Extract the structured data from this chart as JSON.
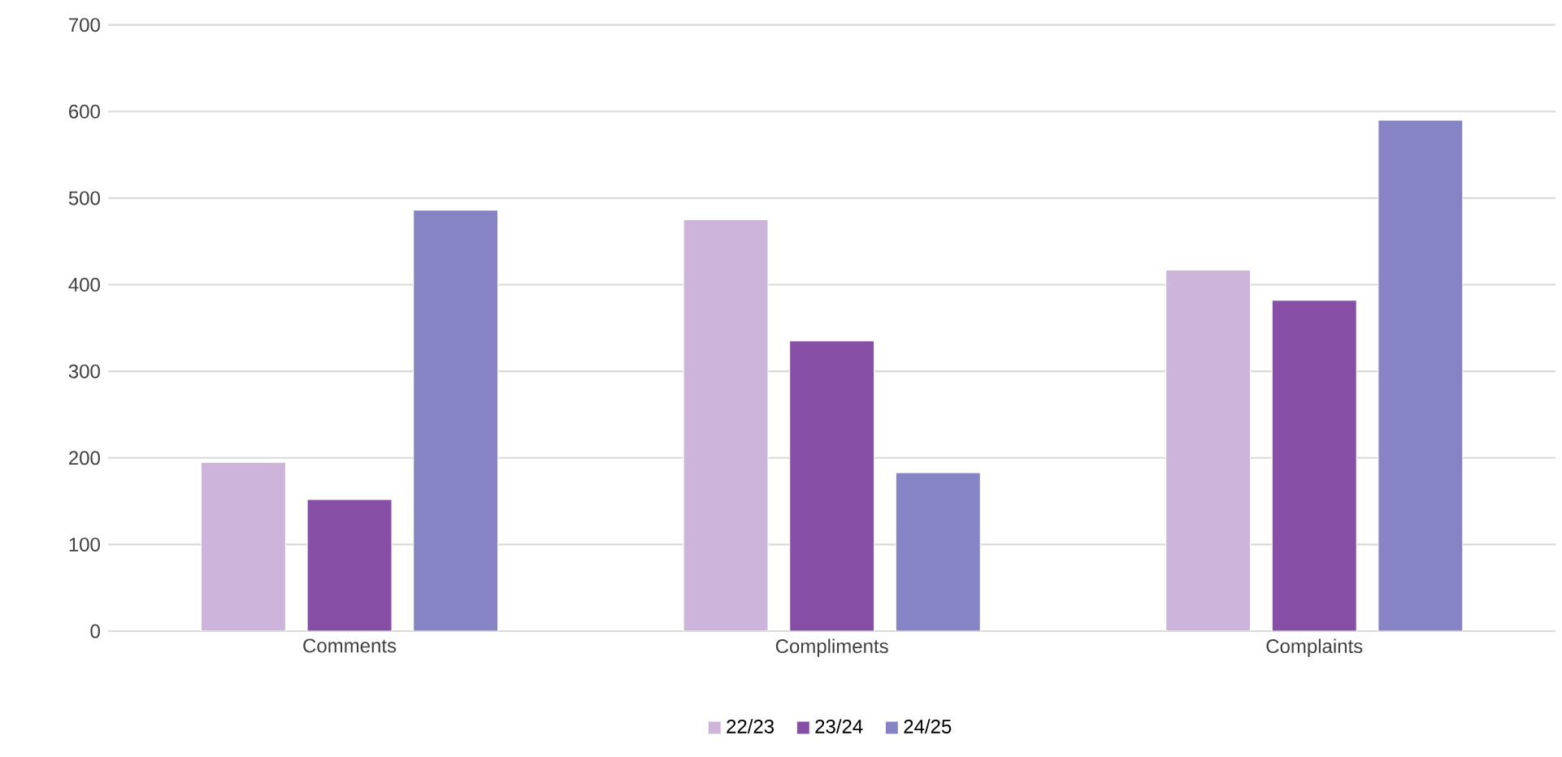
{
  "chart_data": {
    "type": "bar",
    "categories": [
      "Comments",
      "Compliments",
      "Complaints"
    ],
    "series": [
      {
        "name": "22/23",
        "color": "#cdb4db",
        "values": [
          195,
          475,
          417
        ]
      },
      {
        "name": "23/24",
        "color": "#874ea6",
        "values": [
          152,
          335,
          382
        ]
      },
      {
        "name": "24/25",
        "color": "#8784c5",
        "values": [
          486,
          183,
          590
        ]
      }
    ],
    "ylim": [
      0,
      700
    ],
    "yticks": [
      0,
      100,
      200,
      300,
      400,
      500,
      600,
      700
    ],
    "grid": "y",
    "legend": "bottom"
  }
}
